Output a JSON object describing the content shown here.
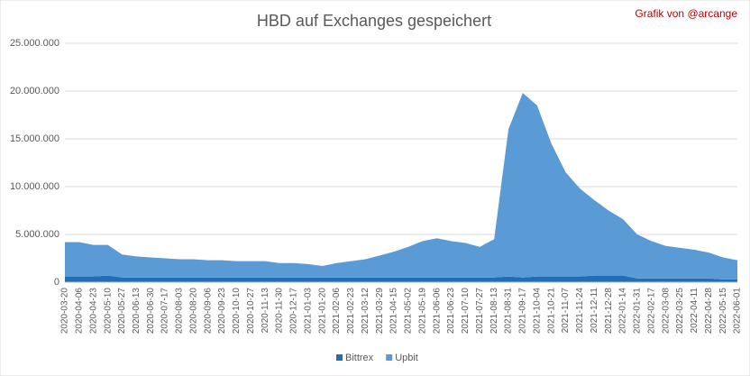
{
  "chart_data": {
    "type": "stacked_area",
    "title": "HBD auf Exchanges gespeichert",
    "annotations": [
      "Grafik von @arcange"
    ],
    "categories": [
      "2020-03-20",
      "2020-04-06",
      "2020-04-23",
      "2020-05-10",
      "2020-05-27",
      "2020-06-13",
      "2020-06-30",
      "2020-07-17",
      "2020-08-03",
      "2020-08-20",
      "2020-09-06",
      "2020-09-23",
      "2020-10-10",
      "2020-10-27",
      "2020-11-13",
      "2020-11-30",
      "2020-12-17",
      "2021-01-03",
      "2021-01-20",
      "2021-02-06",
      "2021-02-23",
      "2021-03-12",
      "2021-03-29",
      "2021-04-15",
      "2021-05-02",
      "2021-05-19",
      "2021-06-06",
      "2021-06-23",
      "2021-07-10",
      "2021-07-27",
      "2021-08-13",
      "2021-08-31",
      "2021-09-17",
      "2021-10-04",
      "2021-10-21",
      "2021-11-07",
      "2021-11-24",
      "2021-12-11",
      "2021-12-28",
      "2022-01-14",
      "2022-01-31",
      "2022-02-17",
      "2022-03-08",
      "2022-03-25",
      "2022-04-11",
      "2022-04-28",
      "2022-05-15",
      "2022-06-01"
    ],
    "series": [
      {
        "name": "Bittrex",
        "color": "#1f6eb8",
        "values": [
          600000,
          600000,
          600000,
          700000,
          500000,
          500000,
          500000,
          500000,
          500000,
          500000,
          500000,
          500000,
          500000,
          500000,
          500000,
          500000,
          500000,
          500000,
          500000,
          500000,
          500000,
          500000,
          500000,
          500000,
          500000,
          500000,
          500000,
          500000,
          500000,
          500000,
          500000,
          600000,
          500000,
          600000,
          600000,
          600000,
          600000,
          700000,
          700000,
          700000,
          400000,
          400000,
          400000,
          400000,
          400000,
          400000,
          300000,
          300000
        ]
      },
      {
        "name": "Upbit",
        "color": "#5b9bd5",
        "values": [
          3600000,
          3600000,
          3300000,
          3200000,
          2400000,
          2200000,
          2100000,
          2000000,
          1900000,
          1900000,
          1800000,
          1800000,
          1700000,
          1700000,
          1700000,
          1500000,
          1500000,
          1400000,
          1200000,
          1500000,
          1700000,
          1900000,
          2300000,
          2700000,
          3200000,
          3800000,
          4100000,
          3800000,
          3600000,
          3200000,
          4000000,
          15400000,
          19300000,
          17900000,
          13900000,
          10900000,
          9200000,
          7900000,
          6800000,
          5900000,
          4600000,
          3900000,
          3400000,
          3200000,
          3000000,
          2700000,
          2300000,
          2000000
        ]
      }
    ],
    "ylim": [
      0,
      25000000
    ],
    "yticks": [
      0,
      {
        "value": 5000000,
        "label": "5.000.000"
      },
      {
        "value": 10000000,
        "label": "10.000.000"
      },
      {
        "value": 15000000,
        "label": "15.000.000"
      },
      {
        "value": 20000000,
        "label": "20.000.000"
      },
      {
        "value": 25000000,
        "label": "25.000.000"
      }
    ],
    "grid": true,
    "legend": "bottom"
  }
}
